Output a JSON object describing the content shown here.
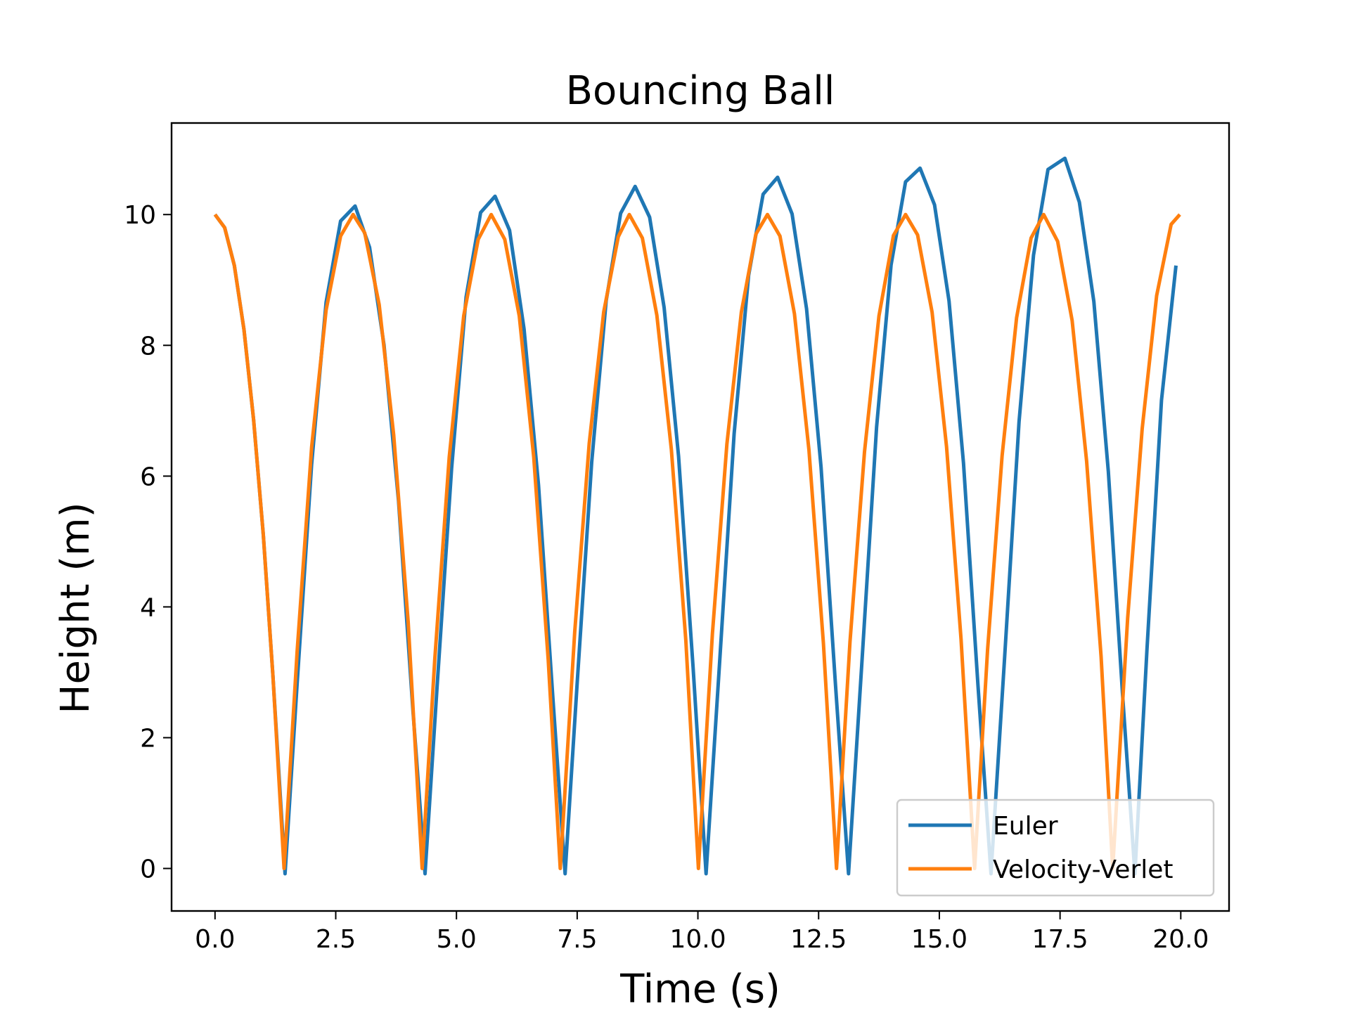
{
  "chart_data": {
    "type": "line",
    "title": "Bouncing Ball",
    "xlabel": "Time (s)",
    "ylabel": "Height (m)",
    "xlim": [
      -0.9,
      21.0
    ],
    "ylim": [
      -0.65,
      11.4
    ],
    "x_ticks": [
      0.0,
      2.5,
      5.0,
      7.5,
      10.0,
      12.5,
      15.0,
      17.5,
      20.0
    ],
    "x_tick_labels": [
      "0.0",
      "2.5",
      "5.0",
      "7.5",
      "10.0",
      "12.5",
      "15.0",
      "17.5",
      "20.0"
    ],
    "y_ticks": [
      0,
      2,
      4,
      6,
      8,
      10
    ],
    "y_tick_labels": [
      "0",
      "2",
      "4",
      "6",
      "8",
      "10"
    ],
    "grid": false,
    "legend_position": "lower-right",
    "series": [
      {
        "name": "Euler",
        "color": "#1f77b4",
        "points": [
          [
            0.0,
            10.0
          ],
          [
            0.2,
            9.8
          ],
          [
            0.4,
            9.22
          ],
          [
            0.6,
            8.24
          ],
          [
            0.8,
            6.86
          ],
          [
            1.0,
            5.1
          ],
          [
            1.2,
            2.94
          ],
          [
            1.45,
            -0.08
          ],
          [
            1.7,
            2.83
          ],
          [
            2.0,
            6.18
          ],
          [
            2.3,
            8.66
          ],
          [
            2.6,
            9.9
          ],
          [
            2.9,
            10.13
          ],
          [
            3.2,
            9.5
          ],
          [
            3.5,
            8.0
          ],
          [
            3.8,
            5.62
          ],
          [
            4.1,
            2.4
          ],
          [
            4.35,
            -0.08
          ],
          [
            4.6,
            2.79
          ],
          [
            4.9,
            6.12
          ],
          [
            5.2,
            8.74
          ],
          [
            5.5,
            10.03
          ],
          [
            5.8,
            10.28
          ],
          [
            6.1,
            9.76
          ],
          [
            6.4,
            8.25
          ],
          [
            6.7,
            5.86
          ],
          [
            7.0,
            2.58
          ],
          [
            7.25,
            -0.08
          ],
          [
            7.5,
            2.84
          ],
          [
            7.8,
            6.21
          ],
          [
            8.1,
            8.68
          ],
          [
            8.4,
            10.02
          ],
          [
            8.7,
            10.43
          ],
          [
            9.0,
            9.96
          ],
          [
            9.3,
            8.58
          ],
          [
            9.6,
            6.3
          ],
          [
            9.9,
            3.08
          ],
          [
            10.17,
            -0.08
          ],
          [
            10.45,
            3.16
          ],
          [
            10.75,
            6.65
          ],
          [
            11.05,
            9.07
          ],
          [
            11.35,
            10.31
          ],
          [
            11.65,
            10.57
          ],
          [
            11.95,
            10.01
          ],
          [
            12.25,
            8.56
          ],
          [
            12.55,
            6.14
          ],
          [
            12.85,
            2.8
          ],
          [
            13.12,
            -0.08
          ],
          [
            13.4,
            3.2
          ],
          [
            13.7,
            6.75
          ],
          [
            14.0,
            9.23
          ],
          [
            14.3,
            10.5
          ],
          [
            14.6,
            10.71
          ],
          [
            14.9,
            10.15
          ],
          [
            15.2,
            8.68
          ],
          [
            15.5,
            6.2
          ],
          [
            15.8,
            2.8
          ],
          [
            16.07,
            -0.08
          ],
          [
            16.35,
            3.21
          ],
          [
            16.65,
            6.83
          ],
          [
            16.95,
            9.38
          ],
          [
            17.25,
            10.69
          ],
          [
            17.6,
            10.86
          ],
          [
            17.9,
            10.19
          ],
          [
            18.2,
            8.67
          ],
          [
            18.5,
            6.07
          ],
          [
            18.8,
            2.6
          ],
          [
            19.05,
            -0.08
          ],
          [
            19.3,
            3.36
          ],
          [
            19.6,
            7.16
          ],
          [
            19.9,
            9.22
          ]
        ]
      },
      {
        "name": "Velocity-Verlet",
        "color": "#ff7f0e",
        "points": [
          [
            0.0,
            10.0
          ],
          [
            0.2,
            9.8
          ],
          [
            0.4,
            9.22
          ],
          [
            0.6,
            8.24
          ],
          [
            0.8,
            6.86
          ],
          [
            1.0,
            5.1
          ],
          [
            1.2,
            2.94
          ],
          [
            1.43,
            0.0
          ],
          [
            1.7,
            3.32
          ],
          [
            2.0,
            6.44
          ],
          [
            2.3,
            8.54
          ],
          [
            2.6,
            9.67
          ],
          [
            2.86,
            10.0
          ],
          [
            3.1,
            9.72
          ],
          [
            3.4,
            8.62
          ],
          [
            3.7,
            6.63
          ],
          [
            4.0,
            3.77
          ],
          [
            4.29,
            0.0
          ],
          [
            4.55,
            3.19
          ],
          [
            4.85,
            6.29
          ],
          [
            5.15,
            8.45
          ],
          [
            5.45,
            9.62
          ],
          [
            5.72,
            10.0
          ],
          [
            6.0,
            9.62
          ],
          [
            6.3,
            8.45
          ],
          [
            6.6,
            6.29
          ],
          [
            6.9,
            3.19
          ],
          [
            7.15,
            0.0
          ],
          [
            7.45,
            3.62
          ],
          [
            7.75,
            6.5
          ],
          [
            8.05,
            8.51
          ],
          [
            8.35,
            9.66
          ],
          [
            8.58,
            10.0
          ],
          [
            8.85,
            9.64
          ],
          [
            9.15,
            8.46
          ],
          [
            9.45,
            6.41
          ],
          [
            9.75,
            3.49
          ],
          [
            10.01,
            0.0
          ],
          [
            10.3,
            3.59
          ],
          [
            10.6,
            6.49
          ],
          [
            10.9,
            8.51
          ],
          [
            11.2,
            9.7
          ],
          [
            11.44,
            10.0
          ],
          [
            11.7,
            9.67
          ],
          [
            12.0,
            8.48
          ],
          [
            12.3,
            6.4
          ],
          [
            12.6,
            3.44
          ],
          [
            12.87,
            0.0
          ],
          [
            13.15,
            3.47
          ],
          [
            13.45,
            6.37
          ],
          [
            13.75,
            8.45
          ],
          [
            14.05,
            9.68
          ],
          [
            14.3,
            10.0
          ],
          [
            14.55,
            9.69
          ],
          [
            14.85,
            8.51
          ],
          [
            15.15,
            6.45
          ],
          [
            15.45,
            3.51
          ],
          [
            15.73,
            0.0
          ],
          [
            16.0,
            3.35
          ],
          [
            16.3,
            6.31
          ],
          [
            16.6,
            8.42
          ],
          [
            16.9,
            9.64
          ],
          [
            17.16,
            10.0
          ],
          [
            17.45,
            9.59
          ],
          [
            17.75,
            8.38
          ],
          [
            18.05,
            6.23
          ],
          [
            18.35,
            3.24
          ],
          [
            18.59,
            0.0
          ],
          [
            18.9,
            3.83
          ],
          [
            19.2,
            6.72
          ],
          [
            19.5,
            8.76
          ],
          [
            19.8,
            9.85
          ],
          [
            19.98,
            10.0
          ]
        ]
      }
    ]
  }
}
